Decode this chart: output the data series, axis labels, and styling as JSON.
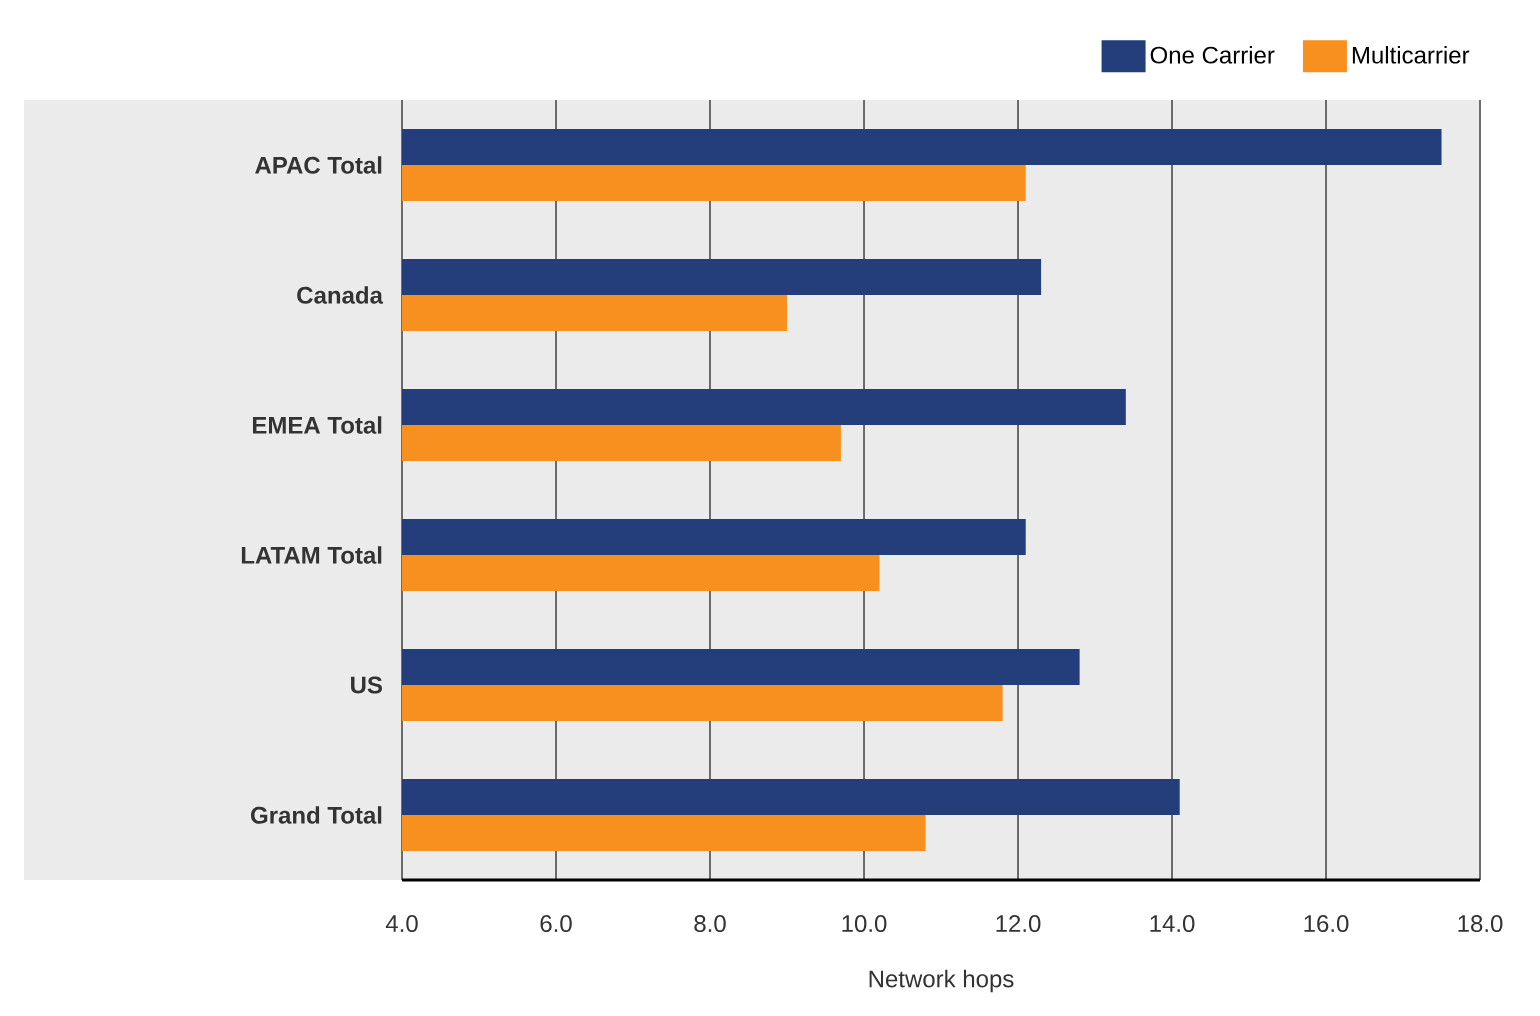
{
  "chart_data": {
    "type": "bar",
    "orientation": "horizontal",
    "xlabel": "Network hops",
    "categories": [
      "APAC Total",
      "Canada",
      "EMEA Total",
      "LATAM Total",
      "US",
      "Grand Total"
    ],
    "series": [
      {
        "name": "One Carrier",
        "color": "#233e7a",
        "values": [
          17.5,
          12.3,
          13.4,
          12.1,
          12.8,
          14.1
        ]
      },
      {
        "name": "Multicarrier",
        "color": "#f7901e",
        "values": [
          12.1,
          9.0,
          9.7,
          10.2,
          11.8,
          10.8
        ]
      }
    ],
    "xlim": [
      4.0,
      18.0
    ],
    "xticks": [
      {
        "value": 4,
        "label": "4.0"
      },
      {
        "value": 6,
        "label": "6.0"
      },
      {
        "value": 8,
        "label": "8.0"
      },
      {
        "value": 10,
        "label": "10.0"
      },
      {
        "value": 12,
        "label": "12.0"
      },
      {
        "value": 14,
        "label": "14.0"
      },
      {
        "value": 16,
        "label": "16.0"
      },
      {
        "value": 18,
        "label": "18.0"
      }
    ],
    "grid": "x",
    "legend": "top right"
  }
}
